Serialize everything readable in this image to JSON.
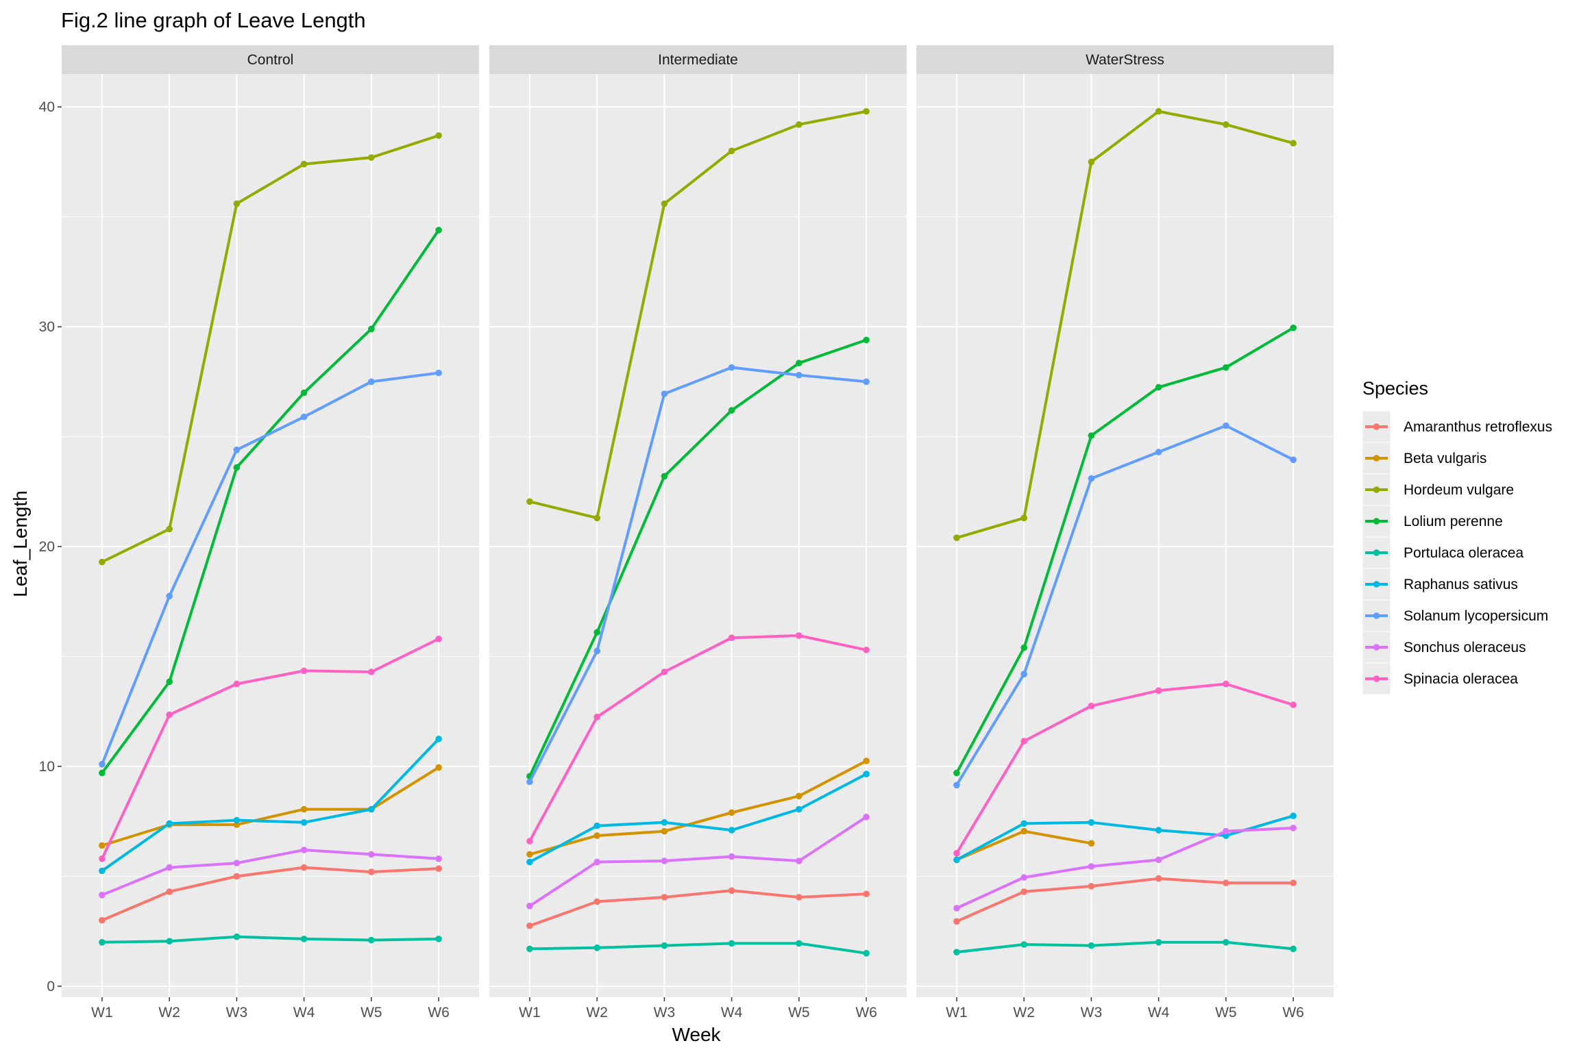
{
  "chart_data": {
    "type": "line",
    "title": "Fig.2 line graph of Leave Length",
    "xlabel": "Week",
    "ylabel": "Leaf_Length",
    "categories": [
      "W1",
      "W2",
      "W3",
      "W4",
      "W5",
      "W6"
    ],
    "ylim": [
      -0.5,
      41.5
    ],
    "yticks": [
      0,
      10,
      20,
      30,
      40
    ],
    "grid": true,
    "legend": {
      "title": "Species",
      "placement": "right"
    },
    "species": [
      {
        "name": "Amaranthus retroflexus",
        "color": "#F8766D"
      },
      {
        "name": "Beta vulgaris",
        "color": "#D39200"
      },
      {
        "name": "Hordeum vulgare",
        "color": "#93AA00"
      },
      {
        "name": "Lolium perenne",
        "color": "#00BA38"
      },
      {
        "name": "Portulaca oleracea",
        "color": "#00C19F"
      },
      {
        "name": "Raphanus sativus",
        "color": "#00B9E3"
      },
      {
        "name": "Solanum lycopersicum",
        "color": "#619CFF"
      },
      {
        "name": "Sonchus oleraceus",
        "color": "#DB72FB"
      },
      {
        "name": "Spinacia oleracea",
        "color": "#FF61C3"
      }
    ],
    "panels": [
      {
        "label": "Control",
        "series": [
          {
            "name": "Amaranthus retroflexus",
            "values": [
              3.0,
              4.3,
              5.0,
              5.4,
              5.2,
              5.35
            ]
          },
          {
            "name": "Beta vulgaris",
            "values": [
              6.4,
              7.35,
              7.35,
              8.05,
              8.05,
              9.95
            ]
          },
          {
            "name": "Hordeum vulgare",
            "values": [
              19.3,
              20.8,
              35.6,
              37.4,
              37.7,
              38.7
            ]
          },
          {
            "name": "Lolium perenne",
            "values": [
              9.7,
              13.85,
              23.6,
              27.0,
              29.9,
              34.4
            ]
          },
          {
            "name": "Portulaca oleracea",
            "values": [
              2.0,
              2.05,
              2.25,
              2.15,
              2.1,
              2.15
            ]
          },
          {
            "name": "Raphanus sativus",
            "values": [
              5.25,
              7.4,
              7.55,
              7.45,
              8.05,
              11.25
            ]
          },
          {
            "name": "Solanum lycopersicum",
            "values": [
              10.1,
              17.75,
              24.4,
              25.9,
              27.5,
              27.9
            ]
          },
          {
            "name": "Sonchus oleraceus",
            "values": [
              4.15,
              5.4,
              5.6,
              6.2,
              6.0,
              5.8
            ]
          },
          {
            "name": "Spinacia oleracea",
            "values": [
              5.8,
              12.35,
              13.75,
              14.35,
              14.3,
              15.8
            ]
          }
        ]
      },
      {
        "label": "Intermediate",
        "series": [
          {
            "name": "Amaranthus retroflexus",
            "values": [
              2.75,
              3.85,
              4.05,
              4.35,
              4.05,
              4.2
            ]
          },
          {
            "name": "Beta vulgaris",
            "values": [
              6.0,
              6.85,
              7.05,
              7.9,
              8.65,
              10.25
            ]
          },
          {
            "name": "Hordeum vulgare",
            "values": [
              22.05,
              21.3,
              35.6,
              38.0,
              39.2,
              39.8
            ]
          },
          {
            "name": "Lolium perenne",
            "values": [
              9.55,
              16.1,
              23.2,
              26.2,
              28.35,
              29.4
            ]
          },
          {
            "name": "Portulaca oleracea",
            "values": [
              1.7,
              1.75,
              1.85,
              1.95,
              1.95,
              1.5
            ]
          },
          {
            "name": "Raphanus sativus",
            "values": [
              5.65,
              7.3,
              7.45,
              7.1,
              8.05,
              9.65
            ]
          },
          {
            "name": "Solanum lycopersicum",
            "values": [
              9.3,
              15.25,
              26.95,
              28.15,
              27.8,
              27.5
            ]
          },
          {
            "name": "Sonchus oleraceus",
            "values": [
              3.65,
              5.65,
              5.7,
              5.9,
              5.7,
              7.7
            ]
          },
          {
            "name": "Spinacia oleracea",
            "values": [
              6.6,
              12.25,
              14.3,
              15.85,
              15.95,
              15.3
            ]
          }
        ]
      },
      {
        "label": "WaterStress",
        "series": [
          {
            "name": "Amaranthus retroflexus",
            "values": [
              2.95,
              4.3,
              4.55,
              4.9,
              4.7,
              4.7
            ]
          },
          {
            "name": "Beta vulgaris",
            "values": [
              5.75,
              7.05,
              6.5,
              null,
              null,
              null
            ]
          },
          {
            "name": "Hordeum vulgare",
            "values": [
              20.4,
              21.3,
              37.5,
              39.8,
              39.2,
              38.35
            ]
          },
          {
            "name": "Lolium perenne",
            "values": [
              9.7,
              15.4,
              25.05,
              27.25,
              28.15,
              29.95
            ]
          },
          {
            "name": "Portulaca oleracea",
            "values": [
              1.55,
              1.9,
              1.85,
              2.0,
              2.0,
              1.7
            ]
          },
          {
            "name": "Raphanus sativus",
            "values": [
              5.75,
              7.4,
              7.45,
              7.1,
              6.85,
              7.75
            ]
          },
          {
            "name": "Solanum lycopersicum",
            "values": [
              9.15,
              14.2,
              23.1,
              24.3,
              25.5,
              23.95
            ]
          },
          {
            "name": "Sonchus oleraceus",
            "values": [
              3.55,
              4.95,
              5.45,
              5.75,
              7.05,
              7.2
            ]
          },
          {
            "name": "Spinacia oleracea",
            "values": [
              6.05,
              11.15,
              12.75,
              13.45,
              13.75,
              12.8
            ]
          }
        ]
      }
    ]
  }
}
